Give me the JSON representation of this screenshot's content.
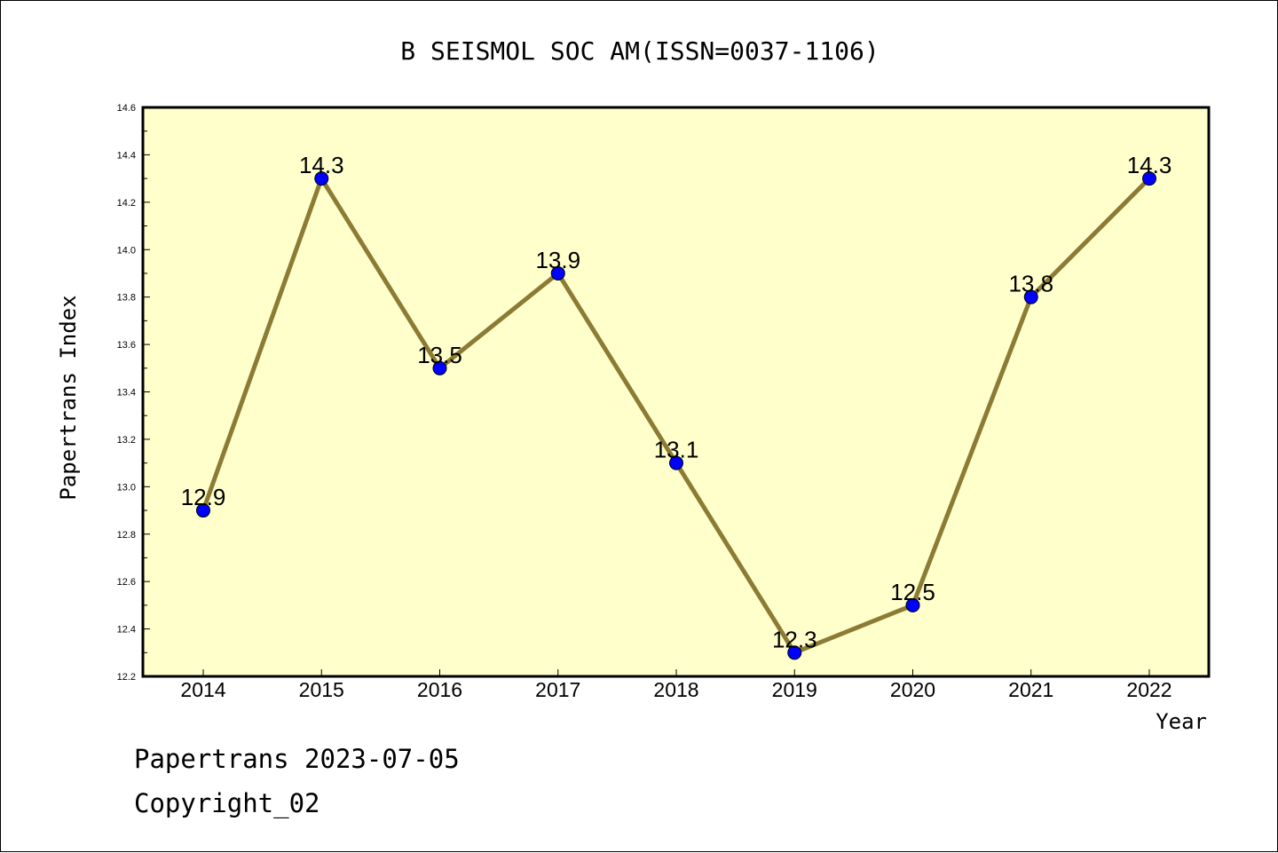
{
  "chart_data": {
    "type": "line",
    "title": "B SEISMOL SOC AM(ISSN=0037-1106)",
    "xlabel": "Year",
    "ylabel": "Papertrans Index",
    "categories": [
      "2014",
      "2015",
      "2016",
      "2017",
      "2018",
      "2019",
      "2020",
      "2021",
      "2022"
    ],
    "values": [
      12.9,
      14.3,
      13.5,
      13.9,
      13.1,
      12.3,
      12.5,
      13.8,
      14.3
    ],
    "data_labels": [
      "12.9",
      "14.3",
      "13.5",
      "13.9",
      "13.1",
      "12.3",
      "12.5",
      "13.8",
      "14.3"
    ],
    "ylim": [
      12.2,
      14.6
    ],
    "yticks": [
      "12.2",
      "12.4",
      "12.6",
      "12.8",
      "13.0",
      "13.2",
      "13.4",
      "13.6",
      "13.8",
      "14.0",
      "14.2",
      "14.4",
      "14.6"
    ],
    "grid": false,
    "colors": {
      "plot_background": "#ffffcc",
      "line": "#8c7b35",
      "marker": "#0000ff"
    }
  },
  "footer": {
    "line1": "Papertrans 2023-07-05",
    "line2": "Copyright_02"
  }
}
